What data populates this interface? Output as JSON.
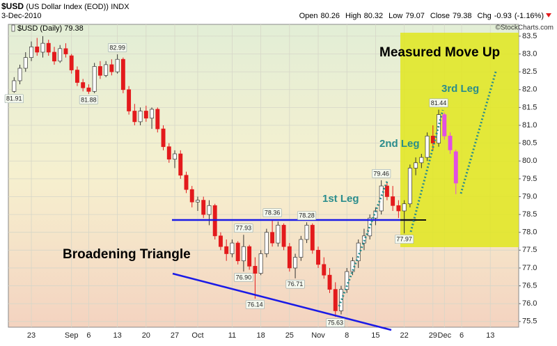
{
  "chart_data": {
    "type": "candlestick",
    "symbol": "$USD",
    "name": "(US Dollar Index (EOD))",
    "exchange": "INDX",
    "date": "3-Dec-2010",
    "quote": [
      {
        "name": "Open",
        "value": 80.26
      },
      {
        "name": "High",
        "value": 80.32
      },
      {
        "name": "Low",
        "value": 79.07
      },
      {
        "name": "Close",
        "value": 79.38
      },
      {
        "name": "Chg",
        "value": -0.93
      }
    ],
    "change_percent": {
      "value": -1.16,
      "label": "(-1.16%)"
    },
    "watermark": "©StockCharts.com",
    "legend_label": "$USD (Daily)",
    "legend_value": 79.38,
    "annotations": [
      "Measured Move Up",
      "3rd Leg",
      "2nd Leg",
      "1st Leg",
      "Broadening Triangle"
    ],
    "categories": [
      null,
      null,
      null,
      "23",
      null,
      null,
      null,
      null,
      null,
      null,
      "Sep",
      null,
      null,
      "6",
      null,
      null,
      null,
      null,
      "13",
      null,
      null,
      null,
      null,
      "20",
      null,
      null,
      null,
      null,
      "27",
      null,
      null,
      null,
      "Oct",
      null,
      null,
      null,
      null,
      null,
      "11",
      null,
      null,
      null,
      null,
      "18",
      null,
      null,
      null,
      null,
      "25",
      null,
      null,
      null,
      null,
      "Nov",
      null,
      null,
      null,
      null,
      "8",
      null,
      null,
      null,
      null,
      "15",
      null,
      null,
      null,
      null,
      "22",
      null,
      null,
      null,
      null,
      "29",
      null,
      "Dec",
      null,
      null,
      "6",
      null,
      null,
      null,
      null,
      "13",
      null,
      null
    ],
    "open": [
      81.95,
      82.25,
      82.6,
      82.9,
      83.2,
      83.05,
      83.3,
      83.05,
      82.8,
      83.15,
      82.95,
      82.55,
      82.2,
      82.05,
      81.95,
      82.65,
      82.4,
      82.7,
      82.5,
      82.85,
      82.0,
      81.4,
      81.1,
      81.4,
      81.2,
      81.45,
      80.9,
      80.4,
      80.05,
      80.2,
      79.6,
      79.2,
      78.85,
      78.9,
      78.5,
      78.75,
      77.9,
      77.6,
      77.4,
      77.7,
      77.2,
      77.6,
      77.05,
      76.85,
      77.4,
      78.0,
      77.7,
      78.2,
      77.6,
      77.0,
      77.3,
      77.8,
      78.2,
      77.5,
      77.1,
      76.8,
      76.4,
      75.8,
      76.4,
      76.9,
      77.2,
      77.7,
      77.9,
      78.4,
      78.6,
      79.3,
      79.0,
      78.75,
      78.6,
      78.8,
      79.8,
      79.95,
      80.1,
      80.7,
      80.5,
      81.3,
      80.7,
      80.26,
      null,
      null,
      null,
      null,
      null,
      null,
      null,
      null
    ],
    "high": [
      82.35,
      82.7,
      83.05,
      83.35,
      83.45,
      83.5,
      83.4,
      83.2,
      83.25,
      83.3,
      83.0,
      82.65,
      82.3,
      82.15,
      82.75,
      82.8,
      82.8,
      82.85,
      82.99,
      82.9,
      82.1,
      81.6,
      81.5,
      81.55,
      81.5,
      81.5,
      81.0,
      80.5,
      80.3,
      80.3,
      79.7,
      79.3,
      79.0,
      79.0,
      78.9,
      78.8,
      78.0,
      77.8,
      77.8,
      77.75,
      77.93,
      77.65,
      77.3,
      77.5,
      78.1,
      78.36,
      78.3,
      78.25,
      77.7,
      77.4,
      77.9,
      78.28,
      78.25,
      77.6,
      77.3,
      77.0,
      76.6,
      76.5,
      77.0,
      77.3,
      77.8,
      78.1,
      78.5,
      78.7,
      79.46,
      79.4,
      79.3,
      78.9,
      78.9,
      79.9,
      80.1,
      80.2,
      80.8,
      81.0,
      81.44,
      81.35,
      80.8,
      80.32,
      null,
      null,
      null,
      null,
      null,
      null,
      null,
      null
    ],
    "low": [
      81.91,
      82.15,
      82.5,
      82.8,
      82.95,
      82.9,
      82.95,
      82.7,
      82.75,
      82.9,
      82.45,
      82.1,
      81.95,
      81.88,
      81.9,
      82.3,
      82.35,
      82.4,
      82.45,
      81.9,
      81.3,
      81.0,
      81.0,
      81.1,
      80.9,
      80.8,
      80.3,
      79.95,
      79.8,
      79.5,
      79.1,
      78.7,
      78.6,
      78.4,
      78.2,
      77.8,
      77.5,
      77.2,
      77.3,
      77.1,
      76.9,
      76.95,
      76.14,
      76.8,
      77.3,
      77.6,
      77.6,
      77.5,
      76.9,
      76.71,
      77.2,
      77.7,
      77.4,
      77.0,
      76.7,
      76.3,
      75.63,
      75.7,
      76.3,
      76.8,
      77.0,
      77.5,
      77.8,
      78.2,
      78.5,
      78.9,
      78.6,
      78.4,
      77.97,
      78.7,
      79.6,
      79.8,
      80.0,
      80.3,
      80.4,
      80.6,
      80.2,
      79.07,
      null,
      null,
      null,
      null,
      null,
      null,
      null,
      null
    ],
    "close": [
      82.25,
      82.6,
      82.9,
      83.2,
      83.05,
      83.3,
      83.05,
      82.8,
      83.15,
      83.0,
      82.55,
      82.2,
      82.05,
      81.95,
      82.65,
      82.4,
      82.7,
      82.5,
      82.85,
      82.0,
      81.4,
      81.1,
      81.4,
      81.2,
      81.45,
      80.9,
      80.4,
      80.05,
      80.2,
      79.6,
      79.2,
      78.85,
      78.9,
      78.5,
      78.75,
      77.9,
      77.6,
      77.4,
      77.7,
      77.2,
      77.6,
      77.05,
      76.85,
      77.4,
      78.0,
      77.7,
      78.2,
      77.6,
      77.0,
      77.3,
      77.8,
      78.2,
      77.5,
      77.1,
      76.8,
      76.4,
      75.8,
      76.4,
      76.9,
      77.2,
      77.7,
      77.9,
      78.4,
      78.6,
      79.3,
      79.0,
      78.75,
      78.6,
      78.8,
      79.8,
      79.95,
      80.1,
      80.7,
      80.5,
      81.3,
      80.7,
      80.31,
      79.38,
      null,
      null,
      null,
      null,
      null,
      null,
      null,
      null
    ],
    "colors": [
      "#ffffff",
      "#ffffff",
      "#ffffff",
      "#ffffff",
      "#e31a1c",
      "#ffffff",
      "#e31a1c",
      "#e31a1c",
      "#ffffff",
      "#e31a1c",
      "#e31a1c",
      "#e31a1c",
      "#e31a1c",
      "#e31a1c",
      "#ffffff",
      "#e31a1c",
      "#ffffff",
      "#e31a1c",
      "#ffffff",
      "#e31a1c",
      "#e31a1c",
      "#e31a1c",
      "#ffffff",
      "#e31a1c",
      "#ffffff",
      "#e31a1c",
      "#e31a1c",
      "#e31a1c",
      "#ffffff",
      "#e31a1c",
      "#e31a1c",
      "#e31a1c",
      "#ffffff",
      "#e31a1c",
      "#ffffff",
      "#e31a1c",
      "#e31a1c",
      "#e31a1c",
      "#ffffff",
      "#e31a1c",
      "#ffffff",
      "#e31a1c",
      "#e31a1c",
      "#ffffff",
      "#ffffff",
      "#e31a1c",
      "#ffffff",
      "#e31a1c",
      "#e31a1c",
      "#ffffff",
      "#ffffff",
      "#ffffff",
      "#e31a1c",
      "#e31a1c",
      "#e31a1c",
      "#e31a1c",
      "#e31a1c",
      "#ffffff",
      "#ffffff",
      "#ffffff",
      "#ffffff",
      "#ffffff",
      "#ffffff",
      "#ffffff",
      "#ffffff",
      "#e31a1c",
      "#e31a1c",
      "#e31a1c",
      "#ffffff",
      "#ffffff",
      "#ffffff",
      "#ffffff",
      "#ffffff",
      "#e31a1c",
      "#ffffff",
      "#e24fe2",
      "#e24fe2",
      "#e24fe2",
      null,
      null,
      null,
      null,
      null,
      null,
      null,
      null
    ],
    "high_labels": [
      null,
      null,
      null,
      null,
      null,
      null,
      null,
      null,
      null,
      null,
      null,
      null,
      null,
      null,
      null,
      null,
      null,
      null,
      "82.99",
      null,
      null,
      null,
      null,
      null,
      null,
      null,
      null,
      null,
      null,
      null,
      null,
      null,
      null,
      null,
      null,
      null,
      null,
      null,
      null,
      null,
      "77.93",
      null,
      null,
      null,
      null,
      "78.36",
      null,
      null,
      null,
      null,
      null,
      "78.28",
      null,
      null,
      null,
      null,
      null,
      null,
      null,
      null,
      null,
      null,
      null,
      null,
      "79.46",
      null,
      null,
      null,
      null,
      null,
      null,
      null,
      null,
      null,
      "81.44",
      null,
      null,
      null,
      null,
      null,
      null,
      null,
      null,
      null,
      null,
      null
    ],
    "low_labels": [
      "81.91",
      null,
      null,
      null,
      null,
      null,
      null,
      null,
      null,
      null,
      null,
      null,
      null,
      "81.88",
      null,
      null,
      null,
      null,
      null,
      null,
      null,
      null,
      null,
      null,
      null,
      null,
      null,
      null,
      null,
      null,
      null,
      null,
      null,
      null,
      null,
      null,
      null,
      null,
      null,
      null,
      "76.90",
      null,
      "76.14",
      null,
      null,
      null,
      null,
      null,
      null,
      "76.71",
      null,
      null,
      null,
      null,
      null,
      null,
      "75.63",
      null,
      null,
      null,
      null,
      null,
      null,
      null,
      null,
      null,
      null,
      null,
      "77.97",
      null,
      null,
      null,
      null,
      null,
      null,
      null,
      null,
      null,
      null,
      null,
      null,
      null,
      null,
      null,
      null,
      null
    ],
    "ylim": [
      75.34,
      83.83
    ],
    "yticks": [
      75.5,
      {
        "value": 76,
        "label": "76.0"
      },
      76.5,
      {
        "value": 77,
        "label": "77.0"
      },
      77.5,
      {
        "value": 78,
        "label": "78.0"
      },
      78.5,
      {
        "value": 79,
        "label": "79.0"
      },
      79.5,
      {
        "value": 80,
        "label": "80.0"
      },
      80.5,
      {
        "value": 81,
        "label": "81.0"
      },
      81.5,
      {
        "value": 82,
        "label": "82.0"
      },
      82.5,
      {
        "value": 83,
        "label": "83.0"
      },
      83.5
    ],
    "grid": true
  }
}
